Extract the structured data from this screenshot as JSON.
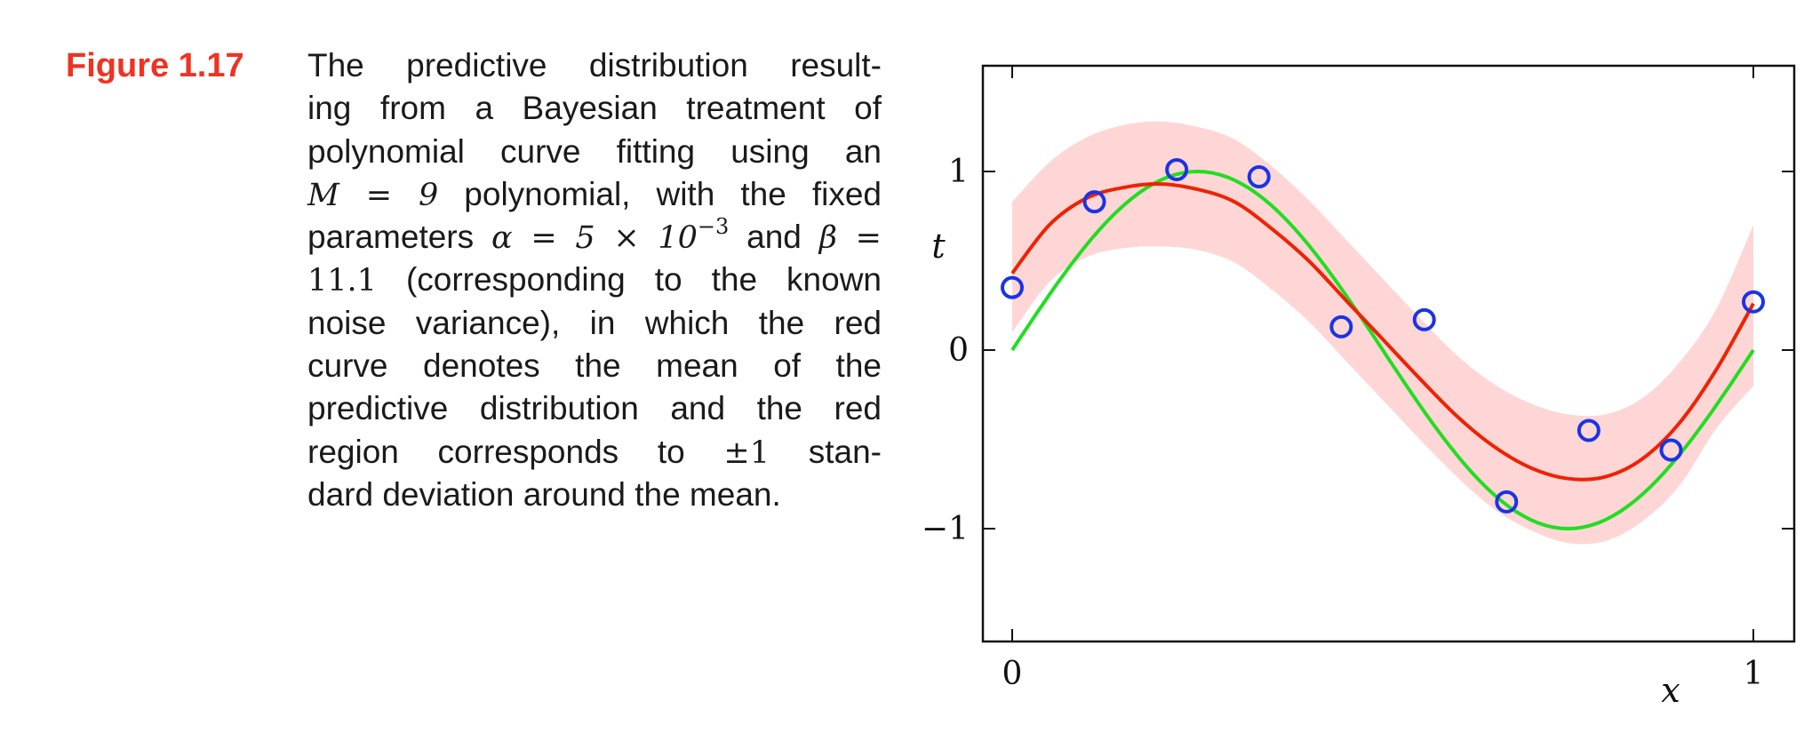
{
  "figure": {
    "label": "Figure 1.17",
    "caption_lines": [
      [
        "The predictive distribution result-"
      ],
      [
        "ing from a Bayesian treatment of"
      ],
      [
        "polynomial curve fitting using an"
      ],
      [
        "",
        "M = 9",
        " polynomial, with the fixed"
      ],
      [
        "parameters ",
        "α = 5 × 10",
        "−3",
        " and ",
        "β ="
      ],
      [
        "11.1",
        " (corresponding to the known"
      ],
      [
        "noise variance), in which the red"
      ],
      [
        "curve denotes the mean of the"
      ],
      [
        "predictive distribution and the red"
      ],
      [
        "region corresponds to ",
        "±1",
        " stan-"
      ],
      [
        "dard deviation around the mean."
      ]
    ]
  },
  "chart_data": {
    "type": "line",
    "xlabel": "x",
    "ylabel": "t",
    "xlim": [
      0,
      1
    ],
    "ylim": [
      -1.6,
      1.6
    ],
    "x_ticks": [
      {
        "value": 0,
        "label": "0"
      },
      {
        "value": 1,
        "label": "1"
      }
    ],
    "y_ticks": [
      {
        "value": -1,
        "label": "−1"
      },
      {
        "value": 0,
        "label": "0"
      },
      {
        "value": 1,
        "label": "1"
      }
    ],
    "colors": {
      "mean": "#ee2200",
      "true_curve": "#22dd22",
      "band": "#ffd6d6",
      "points": "#1a33e6"
    },
    "mean_curve": {
      "x": [
        0.0,
        0.05,
        0.1,
        0.15,
        0.2,
        0.25,
        0.3,
        0.35,
        0.4,
        0.45,
        0.5,
        0.55,
        0.6,
        0.65,
        0.7,
        0.75,
        0.8,
        0.85,
        0.9,
        0.95,
        1.0
      ],
      "y": [
        0.43,
        0.7,
        0.85,
        0.91,
        0.93,
        0.9,
        0.83,
        0.68,
        0.5,
        0.28,
        0.06,
        -0.16,
        -0.37,
        -0.54,
        -0.66,
        -0.72,
        -0.71,
        -0.61,
        -0.41,
        -0.11,
        0.26
      ]
    },
    "band": {
      "x": [
        0.0,
        0.05,
        0.1,
        0.15,
        0.2,
        0.25,
        0.3,
        0.35,
        0.4,
        0.45,
        0.5,
        0.55,
        0.6,
        0.65,
        0.7,
        0.75,
        0.8,
        0.85,
        0.9,
        0.95,
        1.0
      ],
      "upper": [
        0.83,
        1.05,
        1.19,
        1.26,
        1.28,
        1.25,
        1.18,
        1.03,
        0.84,
        0.62,
        0.4,
        0.18,
        -0.03,
        -0.19,
        -0.3,
        -0.36,
        -0.36,
        -0.27,
        -0.07,
        0.23,
        0.7
      ],
      "lower": [
        0.1,
        0.38,
        0.52,
        0.57,
        0.58,
        0.56,
        0.49,
        0.34,
        0.16,
        -0.06,
        -0.28,
        -0.5,
        -0.71,
        -0.89,
        -1.01,
        -1.08,
        -1.07,
        -0.96,
        -0.76,
        -0.44,
        -0.2
      ]
    },
    "true_curve": {
      "function": "sin(2πx)",
      "samples": 100
    },
    "data_points": {
      "x": [
        0.0,
        0.111,
        0.222,
        0.333,
        0.444,
        0.556,
        0.667,
        0.778,
        0.889,
        1.0
      ],
      "y": [
        0.35,
        0.83,
        1.01,
        0.97,
        0.13,
        0.17,
        -0.85,
        -0.45,
        -0.56,
        0.27
      ]
    }
  }
}
